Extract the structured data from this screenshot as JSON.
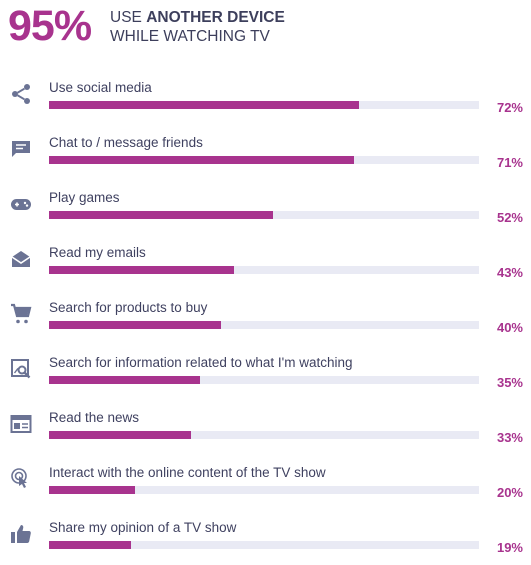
{
  "header": {
    "big_value": "95%",
    "line1_plain": "USE ",
    "line1_bold": "ANOTHER DEVICE",
    "line2": "WHILE WATCHING TV"
  },
  "colors": {
    "accent": "#a8338e",
    "track": "#e9eaf4",
    "icon": "#6b7394",
    "text": "#3f4160"
  },
  "chart_data": {
    "type": "bar",
    "orientation": "horizontal",
    "xlim": [
      0,
      100
    ],
    "categories": [
      "Use social media",
      "Chat to / message friends",
      "Play games",
      "Read my emails",
      "Search for products to buy",
      "Search for information related to what I'm watching",
      "Read the news",
      "Interact with the online content of the TV show",
      "Share my opinion of a TV show"
    ],
    "values": [
      72,
      71,
      52,
      43,
      40,
      35,
      33,
      20,
      19
    ],
    "value_labels": [
      "72%",
      "71%",
      "52%",
      "43%",
      "40%",
      "35%",
      "33%",
      "20%",
      "19%"
    ],
    "icons": [
      "share-icon",
      "chat-icon",
      "gamepad-icon",
      "envelope-open-icon",
      "shopping-cart-icon",
      "image-search-icon",
      "news-icon",
      "touch-icon",
      "thumbs-up-icon"
    ]
  }
}
